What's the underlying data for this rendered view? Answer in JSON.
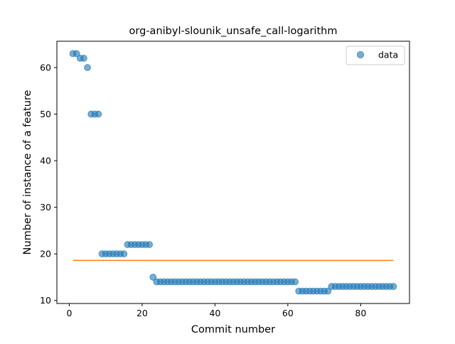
{
  "chart_data": {
    "type": "scatter",
    "title": "org-anibyl-slounik_unsafe_call-logarithm",
    "xlabel": "Commit number",
    "ylabel": "Number of instance of a feature",
    "xlim": [
      -3.4,
      93.4
    ],
    "ylim": [
      9.35,
      65.65
    ],
    "xticks": [
      0,
      20,
      40,
      60,
      80
    ],
    "yticks": [
      10,
      20,
      30,
      40,
      50,
      60
    ],
    "grid": false,
    "legend": {
      "location": "top-right",
      "entries": [
        "data"
      ]
    },
    "series": [
      {
        "name": "data",
        "marker": "circle",
        "color": "#1f77b4",
        "x": [
          1,
          2,
          3,
          4,
          5,
          6,
          7,
          8,
          9,
          10,
          11,
          12,
          13,
          14,
          15,
          16,
          17,
          18,
          19,
          20,
          21,
          22,
          23,
          24,
          25,
          26,
          27,
          28,
          29,
          30,
          31,
          32,
          33,
          34,
          35,
          36,
          37,
          38,
          39,
          40,
          41,
          42,
          43,
          44,
          45,
          46,
          47,
          48,
          49,
          50,
          51,
          52,
          53,
          54,
          55,
          56,
          57,
          58,
          59,
          60,
          61,
          62,
          63,
          64,
          65,
          66,
          67,
          68,
          69,
          70,
          71,
          72,
          73,
          74,
          75,
          76,
          77,
          78,
          79,
          80,
          81,
          82,
          83,
          84,
          85,
          86,
          87,
          88,
          89
        ],
        "y": [
          63,
          63,
          62,
          62,
          60,
          50,
          50,
          50,
          20,
          20,
          20,
          20,
          20,
          20,
          20,
          22,
          22,
          22,
          22,
          22,
          22,
          22,
          15,
          14,
          14,
          14,
          14,
          14,
          14,
          14,
          14,
          14,
          14,
          14,
          14,
          14,
          14,
          14,
          14,
          14,
          14,
          14,
          14,
          14,
          14,
          14,
          14,
          14,
          14,
          14,
          14,
          14,
          14,
          14,
          14,
          14,
          14,
          14,
          14,
          14,
          14,
          14,
          12,
          12,
          12,
          12,
          12,
          12,
          12,
          12,
          12,
          13,
          13,
          13,
          13,
          13,
          13,
          13,
          13,
          13,
          13,
          13,
          13,
          13,
          13,
          13,
          13,
          13,
          13
        ]
      },
      {
        "marker": "line",
        "color": "#ff7f0e",
        "x": [
          1,
          89
        ],
        "y": [
          18.6,
          18.6
        ]
      }
    ]
  }
}
